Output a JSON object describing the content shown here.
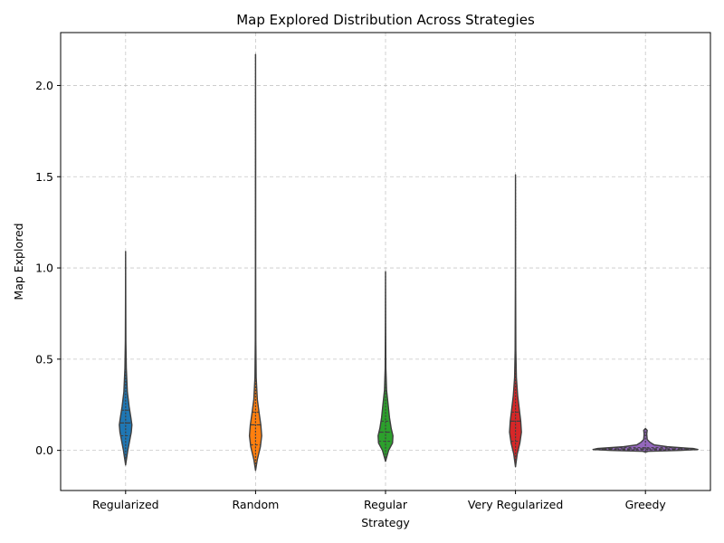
{
  "chart_data": {
    "type": "violin",
    "title": "Map Explored Distribution Across Strategies",
    "xlabel": "Strategy",
    "ylabel": "Map Explored",
    "ylim": [
      -0.22,
      2.29
    ],
    "yticks": [
      "0.0",
      "0.5",
      "1.0",
      "1.5",
      "2.0"
    ],
    "grid": true,
    "categories": [
      "Regularized",
      "Random",
      "Regular",
      "Very Regularized",
      "Greedy"
    ],
    "series": [
      {
        "category": "Regularized",
        "color": "#1f77b4",
        "min": -0.08,
        "max": 1.09,
        "q1": 0.08,
        "median": 0.15,
        "q3": 0.22,
        "profile": [
          [
            -0.08,
            0.0
          ],
          [
            0.0,
            0.25
          ],
          [
            0.05,
            0.45
          ],
          [
            0.1,
            0.65
          ],
          [
            0.14,
            0.72
          ],
          [
            0.18,
            0.6
          ],
          [
            0.24,
            0.4
          ],
          [
            0.32,
            0.2
          ],
          [
            0.45,
            0.08
          ],
          [
            0.6,
            0.03
          ],
          [
            0.8,
            0.015
          ],
          [
            1.09,
            0.0
          ]
        ]
      },
      {
        "category": "Random",
        "color": "#ff7f0e",
        "min": -0.11,
        "max": 2.17,
        "q1": 0.03,
        "median": 0.14,
        "q3": 0.21,
        "profile": [
          [
            -0.11,
            0.0
          ],
          [
            -0.05,
            0.2
          ],
          [
            0.02,
            0.55
          ],
          [
            0.08,
            0.7
          ],
          [
            0.14,
            0.6
          ],
          [
            0.2,
            0.42
          ],
          [
            0.28,
            0.2
          ],
          [
            0.4,
            0.07
          ],
          [
            0.6,
            0.03
          ],
          [
            1.0,
            0.015
          ],
          [
            1.6,
            0.01
          ],
          [
            2.17,
            0.0
          ]
        ]
      },
      {
        "category": "Regular",
        "color": "#2ca02c",
        "min": -0.06,
        "max": 0.98,
        "q1": 0.05,
        "median": 0.1,
        "q3": 0.16,
        "profile": [
          [
            -0.06,
            0.0
          ],
          [
            0.0,
            0.35
          ],
          [
            0.04,
            0.8
          ],
          [
            0.08,
            0.85
          ],
          [
            0.12,
            0.65
          ],
          [
            0.18,
            0.45
          ],
          [
            0.25,
            0.3
          ],
          [
            0.33,
            0.12
          ],
          [
            0.45,
            0.04
          ],
          [
            0.7,
            0.015
          ],
          [
            0.98,
            0.0
          ]
        ]
      },
      {
        "category": "Very Regularized",
        "color": "#d62728",
        "min": -0.09,
        "max": 1.51,
        "q1": 0.05,
        "median": 0.16,
        "q3": 0.21,
        "profile": [
          [
            -0.09,
            0.0
          ],
          [
            -0.02,
            0.2
          ],
          [
            0.04,
            0.5
          ],
          [
            0.1,
            0.68
          ],
          [
            0.16,
            0.6
          ],
          [
            0.22,
            0.45
          ],
          [
            0.3,
            0.25
          ],
          [
            0.4,
            0.1
          ],
          [
            0.55,
            0.04
          ],
          [
            0.9,
            0.015
          ],
          [
            1.51,
            0.0
          ]
        ]
      },
      {
        "category": "Greedy",
        "color": "#9467bd",
        "min": -0.01,
        "max": 0.12,
        "q1": 0.003,
        "median": 0.008,
        "q3": 0.015,
        "profile": [
          [
            -0.01,
            0.0
          ],
          [
            -0.005,
            0.3
          ],
          [
            0.0,
            4.0
          ],
          [
            0.005,
            6.0
          ],
          [
            0.01,
            5.5
          ],
          [
            0.02,
            2.5
          ],
          [
            0.03,
            1.0
          ],
          [
            0.045,
            0.5
          ],
          [
            0.06,
            0.2
          ],
          [
            0.09,
            0.15
          ],
          [
            0.11,
            0.2
          ],
          [
            0.12,
            0.0
          ]
        ]
      }
    ]
  }
}
